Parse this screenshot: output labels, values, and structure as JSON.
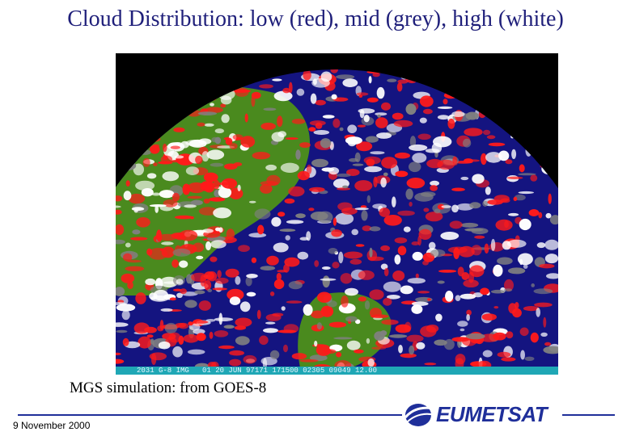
{
  "title": "Cloud Distribution: low (red), mid (grey), high (white)",
  "image": {
    "info_bar_text": "2031 G-8 IMG   01 20 JUN 97171 171500 02305 09049 12.00"
  },
  "caption": "MGS simulation: from GOES-8",
  "footer": {
    "date": "9 November 2000",
    "logo_text": "EUMETSAT"
  },
  "colors": {
    "title": "#1f1f7a",
    "brand": "#1f2f9a",
    "info_bar": "#1fa7b5",
    "low_cloud": "#ff1a1a",
    "mid_cloud": "#808080",
    "high_cloud": "#ffffff",
    "ocean": "#141480",
    "land": "#4a8a1e"
  }
}
